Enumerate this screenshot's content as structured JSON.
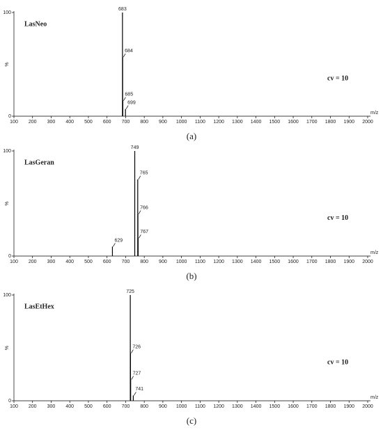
{
  "chart_data": [
    {
      "type": "bar",
      "title": "LasNeo",
      "annotation": "cv = 10",
      "caption": "(a)",
      "xlabel": "m/z",
      "ylabel": "%",
      "x": [
        683,
        684,
        685,
        699
      ],
      "values": [
        100,
        57,
        15,
        7
      ],
      "color": "#000000",
      "xlim": [
        100,
        2000
      ],
      "xticks": [
        100,
        200,
        300,
        400,
        500,
        600,
        700,
        800,
        900,
        1000,
        1100,
        1200,
        1300,
        1400,
        1500,
        1600,
        1700,
        1800,
        1900,
        2000
      ],
      "ylim": [
        0,
        100
      ],
      "yticks": [
        0,
        100
      ]
    },
    {
      "type": "bar",
      "title": "LasGeran",
      "annotation": "cv = 10",
      "caption": "(b)",
      "xlabel": "m/z",
      "ylabel": "%",
      "x": [
        629,
        749,
        765,
        766,
        767
      ],
      "values": [
        9,
        100,
        73,
        40,
        17
      ],
      "color": "#000000",
      "xlim": [
        100,
        2000
      ],
      "xticks": [
        100,
        200,
        300,
        400,
        500,
        600,
        700,
        800,
        900,
        1000,
        1100,
        1200,
        1300,
        1400,
        1500,
        1600,
        1700,
        1800,
        1900,
        2000
      ],
      "ylim": [
        0,
        100
      ],
      "yticks": [
        0,
        100
      ]
    },
    {
      "type": "bar",
      "title": "LasEtHex",
      "annotation": "cv = 10",
      "caption": "(c)",
      "xlabel": "m/z",
      "ylabel": "%",
      "x": [
        725,
        726,
        727,
        741
      ],
      "values": [
        100,
        45,
        20,
        5
      ],
      "color": "#000000",
      "xlim": [
        100,
        2000
      ],
      "xticks": [
        100,
        200,
        300,
        400,
        500,
        600,
        700,
        800,
        900,
        1000,
        1100,
        1200,
        1300,
        1400,
        1500,
        1600,
        1700,
        1800,
        1900,
        2000
      ],
      "ylim": [
        0,
        100
      ],
      "yticks": [
        0,
        100
      ]
    }
  ]
}
